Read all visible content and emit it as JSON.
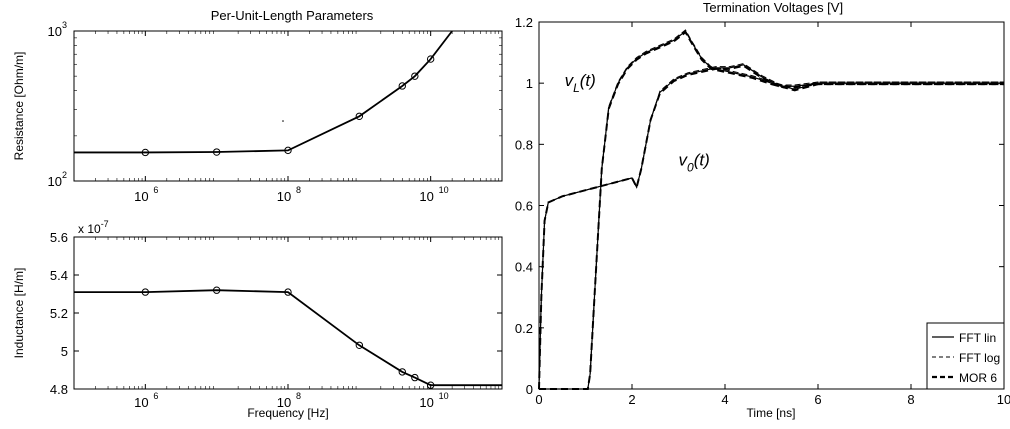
{
  "chart_data": [
    {
      "type": "line",
      "title": "Per-Unit-Length Parameters",
      "xlabel": "",
      "ylabel": "Resistance [Ohm/m]",
      "xscale": "log",
      "yscale": "log",
      "xlim": [
        100000,
        100000000000
      ],
      "ylim": [
        100,
        1000
      ],
      "x_ticks": [
        {
          "v": 1000000,
          "b": "10",
          "e": "6"
        },
        {
          "v": 100000000,
          "b": "10",
          "e": "8"
        },
        {
          "v": 10000000000,
          "b": "10",
          "e": "10"
        }
      ],
      "y_ticks": [
        {
          "v": 100,
          "b": "10",
          "e": "2"
        },
        {
          "v": 1000,
          "b": "10",
          "e": "3"
        }
      ],
      "grid": false,
      "series": [
        {
          "x": [
            100000,
            1000000,
            10000000,
            100000000,
            1000000000,
            4000000000,
            6000000000,
            10000000000,
            20000000000
          ],
          "y": [
            155,
            155,
            156,
            160,
            270,
            430,
            500,
            650,
            1000
          ]
        }
      ],
      "markers": {
        "x": [
          1000000,
          10000000,
          100000000,
          1000000000,
          4000000000,
          6000000000,
          10000000000
        ],
        "y": [
          155,
          156,
          160,
          270,
          430,
          500,
          650
        ]
      }
    },
    {
      "type": "line",
      "title": "",
      "xlabel": "Frequency [Hz]",
      "ylabel": "Inductance [H/m]",
      "y_multiplier": "x 10",
      "y_multiplier_exp": "-7",
      "xscale": "log",
      "xlim": [
        100000,
        100000000000
      ],
      "ylim": [
        4.8,
        5.6
      ],
      "x_ticks": [
        {
          "v": 1000000,
          "b": "10",
          "e": "6"
        },
        {
          "v": 100000000,
          "b": "10",
          "e": "8"
        },
        {
          "v": 10000000000,
          "b": "10",
          "e": "10"
        }
      ],
      "y_ticks": [
        "4.8",
        "5",
        "5.2",
        "5.4",
        "5.6"
      ],
      "grid": false,
      "series": [
        {
          "x": [
            100000,
            1000000,
            10000000,
            100000000,
            1000000000,
            4000000000,
            6000000000,
            10000000000,
            100000000000
          ],
          "y": [
            5.31,
            5.31,
            5.32,
            5.31,
            5.03,
            4.89,
            4.86,
            4.82,
            4.82
          ]
        }
      ],
      "markers": {
        "x": [
          1000000,
          10000000,
          100000000,
          1000000000,
          4000000000,
          6000000000,
          10000000000
        ],
        "y": [
          5.31,
          5.32,
          5.31,
          5.03,
          4.89,
          4.86,
          4.82
        ]
      }
    },
    {
      "type": "line",
      "title": "Termination Voltages [V]",
      "xlabel": "Time [ns]",
      "ylabel": "",
      "xlim": [
        0,
        10
      ],
      "ylim": [
        0,
        1.2
      ],
      "x_ticks": [
        "0",
        "2",
        "4",
        "6",
        "8",
        "10"
      ],
      "y_ticks": [
        "0",
        "0.2",
        "0.4",
        "0.6",
        "0.8",
        "1",
        "1.2"
      ],
      "grid": false,
      "legend": {
        "position": "bottom-right",
        "entries": [
          {
            "label": "FFT lin",
            "style": "solid"
          },
          {
            "label": "FFT log",
            "style": "dashed"
          },
          {
            "label": "MOR 6",
            "style": "bold-dashed"
          }
        ]
      },
      "annotations": [
        {
          "base": "v",
          "sub": "L",
          "tail": "(t)",
          "x": 0.55,
          "y": 0.99
        },
        {
          "base": "v",
          "sub": "0",
          "tail": "(t)",
          "x": 3.0,
          "y": 0.73
        }
      ],
      "series": [
        {
          "name": "v_L(t)",
          "x": [
            0,
            1.05,
            1.1,
            1.2,
            1.35,
            1.5,
            1.7,
            1.9,
            2.1,
            2.3,
            2.6,
            2.9,
            3.15,
            3.3,
            3.5,
            3.7,
            4.0,
            4.3,
            4.6,
            5.0,
            5.5,
            6.0,
            7.0,
            8.0,
            9.0,
            10.0
          ],
          "y": [
            0,
            0,
            0.05,
            0.32,
            0.72,
            0.92,
            1.0,
            1.05,
            1.08,
            1.1,
            1.12,
            1.14,
            1.17,
            1.13,
            1.08,
            1.05,
            1.04,
            1.03,
            1.02,
            1.0,
            0.98,
            1.0,
            1.0,
            1.0,
            1.0,
            1.0
          ]
        },
        {
          "name": "v_0(t)",
          "x": [
            0,
            0.05,
            0.12,
            0.2,
            0.5,
            1.0,
            1.5,
            2.0,
            2.1,
            2.2,
            2.3,
            2.4,
            2.6,
            2.9,
            3.2,
            3.5,
            3.8,
            4.1,
            4.4,
            4.8,
            5.2,
            5.5,
            6.0,
            7.0,
            8.0,
            9.0,
            10.0
          ],
          "y": [
            0,
            0.3,
            0.55,
            0.61,
            0.63,
            0.65,
            0.67,
            0.69,
            0.66,
            0.72,
            0.8,
            0.88,
            0.97,
            1.01,
            1.03,
            1.04,
            1.05,
            1.05,
            1.06,
            1.02,
            0.99,
            0.99,
            1.0,
            1.0,
            1.0,
            1.0,
            1.0
          ]
        }
      ]
    }
  ]
}
